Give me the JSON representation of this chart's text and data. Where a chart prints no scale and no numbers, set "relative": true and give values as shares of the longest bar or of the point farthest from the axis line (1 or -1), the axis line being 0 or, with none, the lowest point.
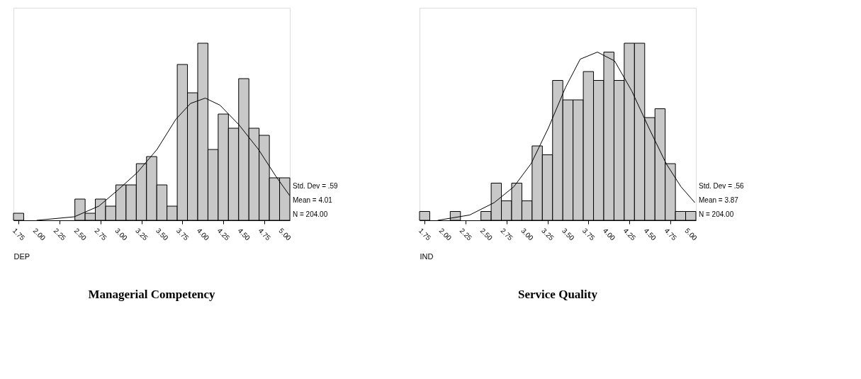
{
  "chart_data": [
    {
      "type": "histogram",
      "title": "Managerial Competency",
      "xlabel": "DEP",
      "relative": true,
      "grid": false,
      "color": "#c8c8c8",
      "bins": [
        1.6875,
        1.8125,
        1.9375,
        2.0625,
        2.1875,
        2.3125,
        2.4375,
        2.5625,
        2.6875,
        2.8125,
        2.9375,
        3.0625,
        3.1875,
        3.3125,
        3.4375,
        3.5625,
        3.6875,
        3.8125,
        3.9375,
        4.0625,
        4.1875,
        4.3125,
        4.4375,
        4.5625,
        4.6875,
        4.8125,
        4.9375,
        5.0625
      ],
      "values": [
        0.04,
        0,
        0,
        0,
        0,
        0,
        0.12,
        0.04,
        0.12,
        0.08,
        0.2,
        0.2,
        0.32,
        0.36,
        0.2,
        0.08,
        0.88,
        0.72,
        1,
        0.4,
        0.6,
        0.52,
        0.8,
        0.52,
        0.48,
        0.24,
        0.24
      ],
      "xlim": [
        1.6875,
        5.0625
      ],
      "xticks": [
        {
          "value": 1.75,
          "label": "1.75"
        },
        {
          "value": 2,
          "label": "2.00"
        },
        {
          "value": 2.25,
          "label": "2.25"
        },
        {
          "value": 2.5,
          "label": "2.50"
        },
        {
          "value": 2.75,
          "label": "2.75"
        },
        {
          "value": 3,
          "label": "3.00"
        },
        {
          "value": 3.25,
          "label": "3.25"
        },
        {
          "value": 3.5,
          "label": "3.50"
        },
        {
          "value": 3.75,
          "label": "3.75"
        },
        {
          "value": 4,
          "label": "4.00"
        },
        {
          "value": 4.25,
          "label": "4.25"
        },
        {
          "value": 4.5,
          "label": "4.50"
        },
        {
          "value": 4.75,
          "label": "4.75"
        },
        {
          "value": 5,
          "label": "5.00"
        }
      ],
      "series": [
        {
          "type": "line",
          "color": "#000000",
          "x": [
            1.97,
            2.43,
            2.73,
            2.96,
            3.2,
            3.44,
            3.67,
            3.85,
            4.03,
            4.21,
            4.44,
            4.68,
            4.89,
            5.06
          ],
          "values": [
            0,
            0.02,
            0.08,
            0.17,
            0.27,
            0.4,
            0.57,
            0.66,
            0.69,
            0.65,
            0.54,
            0.4,
            0.25,
            0.14
          ]
        }
      ],
      "annotations": [
        "Std. Dev = .59",
        "Mean = 4.01",
        "N = 204.00"
      ]
    },
    {
      "type": "histogram",
      "title": "Service Quality",
      "xlabel": "IND",
      "relative": true,
      "grid": false,
      "color": "#c8c8c8",
      "bins": [
        1.6875,
        1.8125,
        1.9375,
        2.0625,
        2.1875,
        2.3125,
        2.4375,
        2.5625,
        2.6875,
        2.8125,
        2.9375,
        3.0625,
        3.1875,
        3.3125,
        3.4375,
        3.5625,
        3.6875,
        3.8125,
        3.9375,
        4.0625,
        4.1875,
        4.3125,
        4.4375,
        4.5625,
        4.6875,
        4.8125,
        4.9375,
        5.0625
      ],
      "values": [
        0.05,
        0,
        0,
        0.05,
        0,
        0,
        0.05,
        0.21,
        0.11,
        0.21,
        0.11,
        0.42,
        0.37,
        0.79,
        0.68,
        0.68,
        0.84,
        0.79,
        0.95,
        0.79,
        1,
        1,
        0.58,
        0.63,
        0.32,
        0.05,
        0.05
      ],
      "xlim": [
        1.6875,
        5.0625
      ],
      "xticks": [
        {
          "value": 1.75,
          "label": "1.75"
        },
        {
          "value": 2,
          "label": "2.00"
        },
        {
          "value": 2.25,
          "label": "2.25"
        },
        {
          "value": 2.5,
          "label": "2.50"
        },
        {
          "value": 2.75,
          "label": "2.75"
        },
        {
          "value": 3,
          "label": "3.00"
        },
        {
          "value": 3.25,
          "label": "3.25"
        },
        {
          "value": 3.5,
          "label": "3.50"
        },
        {
          "value": 3.75,
          "label": "3.75"
        },
        {
          "value": 4,
          "label": "4.00"
        },
        {
          "value": 4.25,
          "label": "4.25"
        },
        {
          "value": 4.5,
          "label": "4.50"
        },
        {
          "value": 4.75,
          "label": "4.75"
        },
        {
          "value": 5,
          "label": "5.00"
        }
      ],
      "series": [
        {
          "type": "line",
          "color": "#000000",
          "x": [
            1.91,
            2.3,
            2.6,
            2.84,
            3.05,
            3.26,
            3.47,
            3.65,
            3.86,
            4.07,
            4.28,
            4.49,
            4.7,
            4.88,
            5.05
          ],
          "values": [
            0,
            0.03,
            0.1,
            0.19,
            0.32,
            0.52,
            0.75,
            0.91,
            0.95,
            0.9,
            0.73,
            0.52,
            0.32,
            0.19,
            0.1
          ]
        }
      ],
      "annotations": [
        "Std. Dev = .56",
        "Mean = 3.87",
        "N = 204.00"
      ]
    }
  ]
}
